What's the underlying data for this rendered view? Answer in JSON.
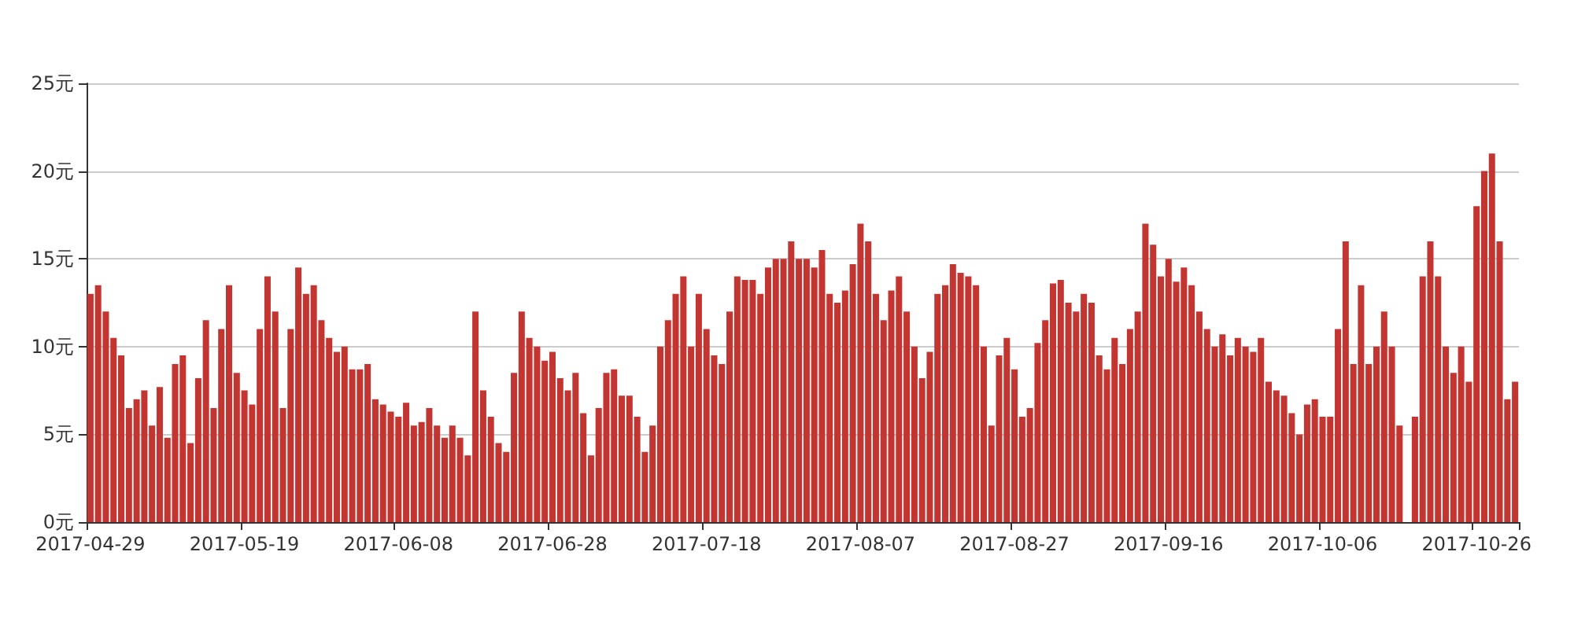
{
  "chart_data": {
    "type": "bar",
    "categories": [
      "2017-04-29",
      null,
      null,
      null,
      null,
      null,
      null,
      null,
      null,
      null,
      null,
      null,
      null,
      null,
      null,
      null,
      null,
      null,
      null,
      null,
      "2017-05-19",
      null,
      null,
      null,
      null,
      null,
      null,
      null,
      null,
      null,
      null,
      null,
      null,
      null,
      null,
      null,
      null,
      null,
      null,
      null,
      "2017-06-08",
      null,
      null,
      null,
      null,
      null,
      null,
      null,
      null,
      null,
      null,
      null,
      null,
      null,
      null,
      null,
      null,
      null,
      null,
      null,
      "2017-06-28",
      null,
      null,
      null,
      null,
      null,
      null,
      null,
      null,
      null,
      null,
      null,
      null,
      null,
      null,
      null,
      null,
      null,
      null,
      null,
      "2017-07-18",
      null,
      null,
      null,
      null,
      null,
      null,
      null,
      null,
      null,
      null,
      null,
      null,
      null,
      null,
      null,
      null,
      null,
      null,
      null,
      "2017-08-07",
      null,
      null,
      null,
      null,
      null,
      null,
      null,
      null,
      null,
      null,
      null,
      null,
      null,
      null,
      null,
      null,
      null,
      null,
      null,
      "2017-08-27",
      null,
      null,
      null,
      null,
      null,
      null,
      null,
      null,
      null,
      null,
      null,
      null,
      null,
      null,
      null,
      null,
      null,
      null,
      null,
      "2017-09-16",
      null,
      null,
      null,
      null,
      null,
      null,
      null,
      null,
      null,
      null,
      null,
      null,
      null,
      null,
      null,
      null,
      null,
      null,
      null,
      "2017-10-06",
      null,
      null,
      null,
      null,
      null,
      null,
      null,
      null,
      null,
      null,
      null,
      null,
      null,
      null,
      null,
      null,
      null,
      null,
      null,
      "2017-10-26",
      null,
      null,
      null,
      null,
      null
    ],
    "values": [
      13,
      13.5,
      12,
      10.5,
      9.5,
      6.5,
      7,
      7.5,
      5.5,
      7.7,
      4.8,
      9,
      9.5,
      4.5,
      8.2,
      11.5,
      6.5,
      11,
      13.5,
      8.5,
      7.5,
      6.7,
      11,
      14,
      12,
      6.5,
      11,
      14.5,
      13,
      13.5,
      11.5,
      10.5,
      9.7,
      10,
      8.7,
      8.7,
      9,
      7,
      6.7,
      6.3,
      6,
      6.8,
      5.5,
      5.7,
      6.5,
      5.5,
      4.8,
      5.5,
      4.8,
      3.8,
      12,
      7.5,
      6,
      4.5,
      4,
      8.5,
      12,
      10.5,
      10,
      9.2,
      9.7,
      8.2,
      7.5,
      8.5,
      6.2,
      3.8,
      6.5,
      8.5,
      8.7,
      7.2,
      7.2,
      6,
      4,
      5.5,
      10,
      11.5,
      13,
      14,
      10,
      13,
      11,
      9.5,
      9,
      12,
      14,
      13.8,
      13.8,
      13,
      14.5,
      15,
      15,
      16,
      15,
      15,
      14.5,
      15.5,
      13,
      12.5,
      13.2,
      14.7,
      17,
      16,
      13,
      11.5,
      13.2,
      14,
      12,
      10,
      8.2,
      9.7,
      13,
      13.5,
      14.7,
      14.2,
      14,
      13.5,
      10,
      5.5,
      9.5,
      10.5,
      8.7,
      6,
      6.5,
      10.2,
      11.5,
      13.6,
      13.8,
      12.5,
      12,
      13,
      12.5,
      9.5,
      8.7,
      10.5,
      9,
      11,
      12,
      17,
      15.8,
      14,
      15,
      13.7,
      14.5,
      13.5,
      12,
      11,
      10,
      10.7,
      9.5,
      10.5,
      10,
      9.7,
      10.5,
      8,
      7.5,
      7.2,
      6.2,
      5,
      6.7,
      7,
      6,
      6,
      11,
      16,
      9,
      13.5,
      9,
      10,
      12,
      10,
      5.5,
      null,
      6,
      14,
      16,
      14,
      10,
      8.5,
      10,
      8,
      18,
      20,
      21,
      16,
      7,
      8
    ],
    "color": "#c23531",
    "ylim": [
      0,
      25
    ],
    "yticks": [
      {
        "value": 0,
        "label": "0元"
      },
      {
        "value": 5,
        "label": "5元"
      },
      {
        "value": 10,
        "label": "10元"
      },
      {
        "value": 15,
        "label": "15元"
      },
      {
        "value": 20,
        "label": "20元"
      },
      {
        "value": 25,
        "label": "25元"
      }
    ],
    "grid": "y"
  }
}
